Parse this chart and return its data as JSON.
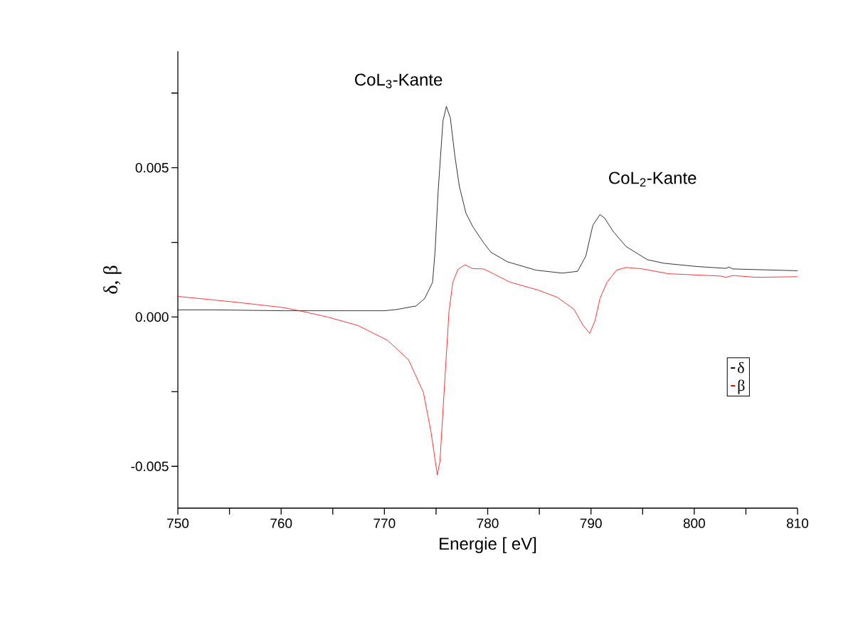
{
  "chart_data": {
    "type": "line",
    "xlabel": "Energie [ eV]",
    "ylabel": "δ, β",
    "xlim": [
      750,
      810
    ],
    "ylim": [
      -0.0064,
      0.0089
    ],
    "xticks": [
      750,
      {
        "value": 755,
        "label": null
      },
      760,
      {
        "value": 765,
        "label": null
      },
      770,
      {
        "value": 775,
        "label": null
      },
      780,
      {
        "value": 785,
        "label": null
      },
      790,
      {
        "value": 795,
        "label": null
      },
      800,
      {
        "value": 805,
        "label": null
      },
      810
    ],
    "yticks": [
      {
        "value": -0.005,
        "label": "-0.005"
      },
      {
        "value": -0.0025,
        "label": null
      },
      {
        "value": 0,
        "label": "0.000"
      },
      {
        "value": 0.0025,
        "label": null
      },
      {
        "value": 0.005,
        "label": "0.005"
      },
      {
        "value": 0.0075,
        "label": null
      }
    ],
    "legend": "bottom right",
    "marker": "none",
    "line_style": "solid",
    "annotations": [
      "CoL$_{3}$-Kante",
      "CoL$_{2}$-Kante"
    ],
    "series": [
      {
        "name": "δ",
        "color": "#000000",
        "x": [
          750,
          753.4,
          760.3,
          767.2,
          770,
          771.15,
          773.06,
          773.9,
          774.66,
          774.9,
          775.2,
          775.67,
          776.0,
          776.38,
          776.83,
          777.26,
          777.9,
          778.57,
          779.62,
          780.31,
          781.9,
          784.67,
          787.2,
          788.7,
          789.5,
          790.18,
          790.87,
          791.33,
          792.14,
          793.4,
          795.46,
          797.07,
          800.29,
          803.04,
          803.39,
          803.73,
          810
        ],
        "values": [
          0.00024,
          0.00024,
          0.00021,
          0.00021,
          0.00021,
          0.00025,
          0.00037,
          0.00062,
          0.00116,
          0.00217,
          0.0042,
          0.00657,
          0.00705,
          0.00667,
          0.00537,
          0.00437,
          0.00347,
          0.00302,
          0.00248,
          0.00217,
          0.00185,
          0.00157,
          0.00147,
          0.00153,
          0.00204,
          0.00307,
          0.00343,
          0.00331,
          0.00287,
          0.00236,
          0.00192,
          0.0018,
          0.00169,
          0.00163,
          0.00167,
          0.00161,
          0.00155
        ]
      },
      {
        "name": "β",
        "color": "#ff0000",
        "x": [
          750,
          755.8,
          760.15,
          761.9,
          764.5,
          767.4,
          770.3,
          772.33,
          773.78,
          774.5,
          775.12,
          775.38,
          775.81,
          776.25,
          776.62,
          777.12,
          777.79,
          778.57,
          779.62,
          782.14,
          784.9,
          786.74,
          788.35,
          789.26,
          789.88,
          790.41,
          790.87,
          791.56,
          792.48,
          793.4,
          795.0,
          797.5,
          802.58,
          803.04,
          803.73,
          806.02,
          810
        ],
        "values": [
          0.00069,
          0.00049,
          0.00032,
          0.0002,
          0.0,
          -0.00028,
          -0.00078,
          -0.00143,
          -0.00253,
          -0.00383,
          -0.00528,
          -0.00483,
          -0.00233,
          0.00017,
          0.00117,
          0.00159,
          0.00175,
          0.00162,
          0.00161,
          0.00117,
          0.0009,
          0.00066,
          0.00026,
          -0.00029,
          -0.00055,
          -0.0001,
          0.00062,
          0.00117,
          0.00157,
          0.00166,
          0.00161,
          0.00145,
          0.00137,
          0.00133,
          0.00139,
          0.00133,
          0.00135
        ]
      }
    ]
  }
}
